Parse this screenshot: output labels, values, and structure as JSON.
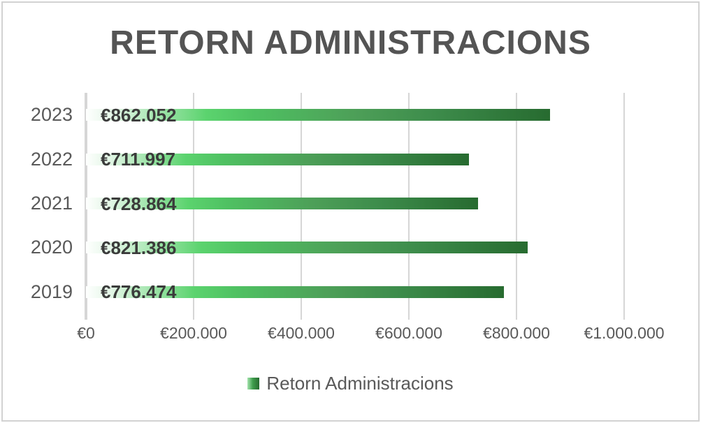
{
  "chart_data": {
    "type": "bar",
    "orientation": "horizontal",
    "title": "RETORN ADMINISTRACIONS",
    "categories": [
      "2023",
      "2022",
      "2021",
      "2020",
      "2019"
    ],
    "series": [
      {
        "name": "Retorn Administracions",
        "values": [
          862052,
          711997,
          728864,
          821386,
          776474
        ],
        "value_labels": [
          "€862.052",
          "€711.997",
          "€728.864",
          "€821.386",
          "€776.474"
        ]
      }
    ],
    "xlabel": "",
    "ylabel": "",
    "xlim": [
      0,
      1000000
    ],
    "x_tick_labels": [
      "€0",
      "€200.000",
      "€400.000",
      "€600.000",
      "€800.000",
      "€1.000.000"
    ],
    "grid": true,
    "legend": "Retorn Administracions",
    "legend_position": "bottom",
    "colors": {
      "bar_gradient_stops": "#fefffe 0%, #e3f6e6 6%, #5bd36e 26%, #4fc162 36%, #4d9f58 58%, #3d8c4b 75%, #276b30 100%",
      "legend_swatch_gradient_stops": "#a5e4ae 0%, #3f9e4d 45%, #276b30 100%",
      "title_color": "#545454",
      "label_color": "#595959",
      "value_label_color": "#3b3b3b",
      "gridline_color": "#d6d6d6",
      "frame_border_color": "#d2d2d2"
    }
  }
}
